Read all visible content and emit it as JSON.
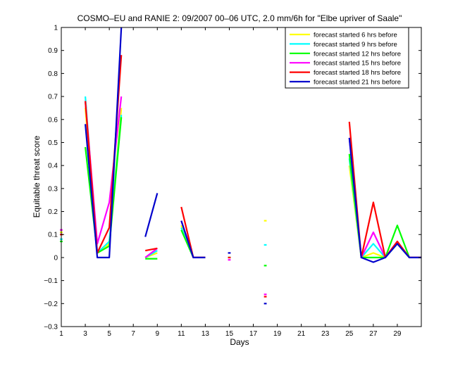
{
  "chart_data": {
    "type": "line",
    "title": "COSMO–EU and RANIE 2: 09/2007 00–06 UTC, 2.0 mm/6h for \"Elbe upriver of Saale\"",
    "xlabel": "Days",
    "ylabel": "Equitable threat score",
    "xlim": [
      1,
      31
    ],
    "ylim": [
      -0.3,
      1
    ],
    "xticks": [
      1,
      3,
      5,
      7,
      9,
      11,
      13,
      15,
      17,
      19,
      21,
      23,
      25,
      27,
      29
    ],
    "yticks": [
      -0.3,
      -0.2,
      -0.1,
      0,
      0.1,
      0.2,
      0.3,
      0.4,
      0.5,
      0.6,
      0.7,
      0.8,
      0.9,
      1
    ],
    "ytick_labels": [
      "−0.3",
      "−0.2",
      "−0.1",
      "0",
      "0.1",
      "0.2",
      "0.3",
      "0.4",
      "0.5",
      "0.6",
      "0.7",
      "0.8",
      "0.9",
      "1"
    ],
    "grid": false,
    "legend_position": "top-right",
    "x": [
      1,
      2,
      3,
      4,
      5,
      6,
      7,
      8,
      9,
      10,
      11,
      12,
      13,
      14,
      15,
      16,
      17,
      18,
      19,
      20,
      21,
      22,
      23,
      24,
      25,
      26,
      27,
      28,
      29,
      30,
      31
    ],
    "series": [
      {
        "name": "forecast started 6 hrs before",
        "color": "#ffff00",
        "values": [
          0.11,
          null,
          0.65,
          0.02,
          0.06,
          0.65,
          null,
          0.0,
          0.02,
          null,
          0.14,
          0.0,
          0.0,
          null,
          0.0,
          null,
          null,
          0.16,
          null,
          null,
          null,
          null,
          null,
          null,
          0.4,
          0.0,
          0.02,
          0.0,
          0.06,
          0.0,
          0.0
        ]
      },
      {
        "name": "forecast started 9 hrs before",
        "color": "#00ffff",
        "values": [
          0.08,
          null,
          0.7,
          0.02,
          0.07,
          0.62,
          null,
          0.0,
          0.03,
          null,
          0.13,
          0.0,
          0.0,
          null,
          0.0,
          null,
          null,
          0.055,
          null,
          null,
          null,
          null,
          null,
          null,
          0.43,
          0.0,
          0.06,
          0.0,
          0.06,
          0.0,
          0.0
        ]
      },
      {
        "name": "forecast started 12 hrs before",
        "color": "#00ff00",
        "values": [
          0.07,
          null,
          0.48,
          0.02,
          0.05,
          0.61,
          null,
          -0.005,
          -0.005,
          null,
          0.12,
          0.0,
          0.0,
          null,
          0.0,
          null,
          null,
          -0.035,
          null,
          null,
          null,
          null,
          null,
          null,
          0.45,
          0.0,
          0.0,
          0.0,
          0.14,
          0.0,
          0.0
        ]
      },
      {
        "name": "forecast started 15 hrs before",
        "color": "#ff00ff",
        "values": [
          0.12,
          null,
          0.68,
          0.06,
          0.24,
          0.7,
          null,
          0.0,
          0.04,
          null,
          0.16,
          0.0,
          0.0,
          null,
          -0.01,
          null,
          null,
          -0.16,
          null,
          null,
          null,
          null,
          null,
          null,
          0.52,
          0.0,
          0.11,
          0.0,
          0.07,
          0.0,
          0.0
        ]
      },
      {
        "name": "forecast started 18 hrs before",
        "color": "#ff0000",
        "values": [
          0.1,
          null,
          0.68,
          0.02,
          0.13,
          0.88,
          null,
          0.03,
          0.04,
          null,
          0.22,
          0.0,
          0.0,
          null,
          0.0,
          null,
          null,
          -0.17,
          null,
          null,
          null,
          null,
          null,
          null,
          0.59,
          0.0,
          0.24,
          0.0,
          0.07,
          0.0,
          0.0
        ]
      },
      {
        "name": "forecast started 21 hrs before",
        "color": "#0000cc",
        "values": [
          null,
          null,
          0.58,
          0.0,
          0.0,
          1.0,
          null,
          0.09,
          0.28,
          null,
          0.16,
          0.0,
          0.0,
          null,
          0.02,
          null,
          null,
          -0.2,
          null,
          null,
          null,
          null,
          null,
          null,
          0.52,
          0.0,
          -0.02,
          0.0,
          0.06,
          0.0,
          0.0
        ]
      }
    ]
  }
}
